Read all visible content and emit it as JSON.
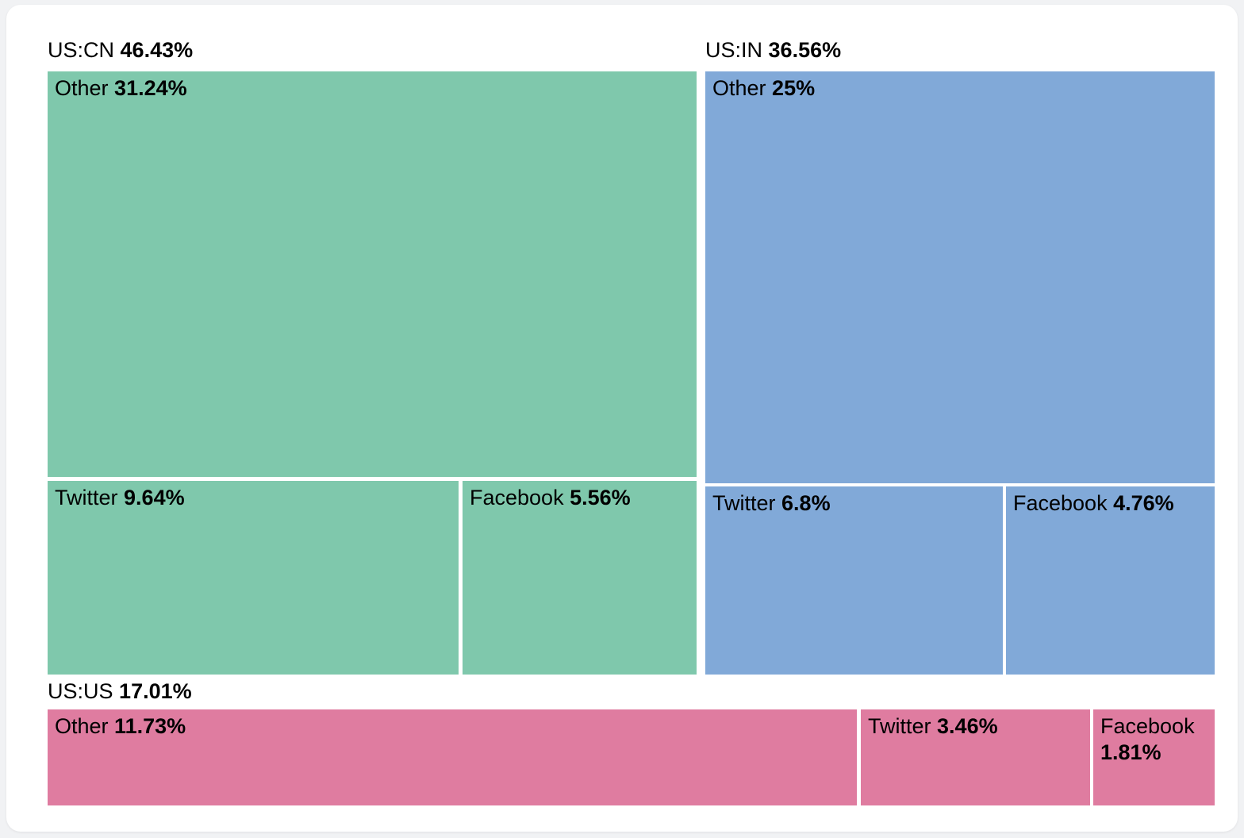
{
  "page": {
    "background_color": "#f1f2f4",
    "card_background_color": "#ffffff",
    "text_color": "#000000"
  },
  "chart_data": {
    "type": "treemap",
    "unit": "%",
    "legend_position": "none",
    "groups": [
      {
        "name": "US:CN",
        "label": "US:CN",
        "value": 46.43,
        "value_label": "46.43%",
        "color": "#7fc8ac",
        "children": [
          {
            "name": "Other",
            "label": "Other",
            "value": 31.24,
            "value_label": "31.24%"
          },
          {
            "name": "Twitter",
            "label": "Twitter",
            "value": 9.64,
            "value_label": "9.64%"
          },
          {
            "name": "Facebook",
            "label": "Facebook",
            "value": 5.56,
            "value_label": "5.56%"
          }
        ]
      },
      {
        "name": "US:IN",
        "label": "US:IN",
        "value": 36.56,
        "value_label": "36.56%",
        "color": "#81a9d8",
        "children": [
          {
            "name": "Other",
            "label": "Other",
            "value": 25,
            "value_label": "25%"
          },
          {
            "name": "Twitter",
            "label": "Twitter",
            "value": 6.8,
            "value_label": "6.8%"
          },
          {
            "name": "Facebook",
            "label": "Facebook",
            "value": 4.76,
            "value_label": "4.76%"
          }
        ]
      },
      {
        "name": "US:US",
        "label": "US:US",
        "value": 17.01,
        "value_label": "17.01%",
        "color": "#df7ca0",
        "children": [
          {
            "name": "Other",
            "label": "Other",
            "value": 11.73,
            "value_label": "11.73%"
          },
          {
            "name": "Twitter",
            "label": "Twitter",
            "value": 3.46,
            "value_label": "3.46%"
          },
          {
            "name": "Facebook",
            "label": "Facebook",
            "value": 1.81,
            "value_label": "1.81%"
          }
        ]
      }
    ]
  }
}
